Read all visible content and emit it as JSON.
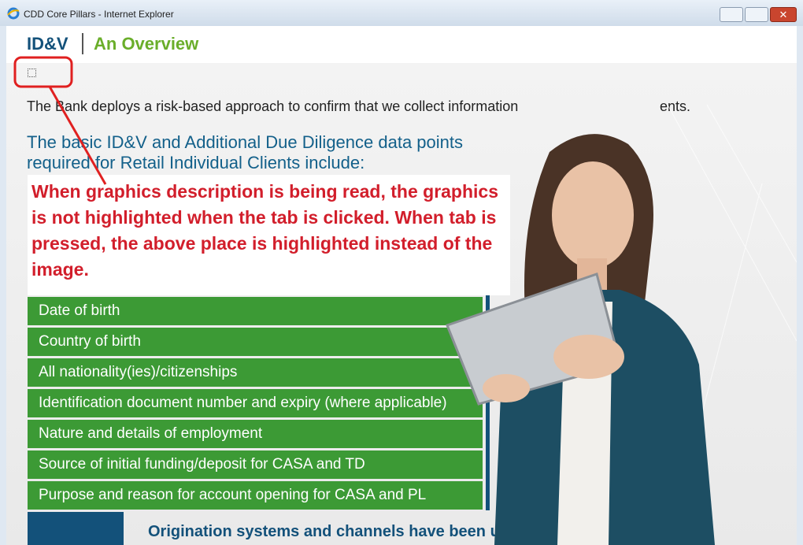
{
  "window": {
    "title": "CDD Core Pillars - Internet Explorer"
  },
  "header": {
    "title": "ID&V",
    "subtitle": "An Overview"
  },
  "content": {
    "intro": "The Bank deploys a risk-based approach to confirm that we collect information",
    "intro_tail": "ents.",
    "heading": "The basic ID&V and Additional Due Diligence data points required for Retail Individual Clients include:",
    "annotation": "When graphics description is being read, the graphics is not highlighted when the tab is clicked. When tab is pressed, the above place is highlighted instead of the image.",
    "items": [
      "Date of birth",
      "Country of birth",
      "All nationality(ies)/citizenships",
      "Identification document number and expiry (where applicable)",
      "Nature and details of employment",
      "Source of initial funding/deposit for CASA and TD",
      "Purpose and reason for account opening for CASA and PL"
    ],
    "footer": "Origination systems and channels have been u"
  }
}
